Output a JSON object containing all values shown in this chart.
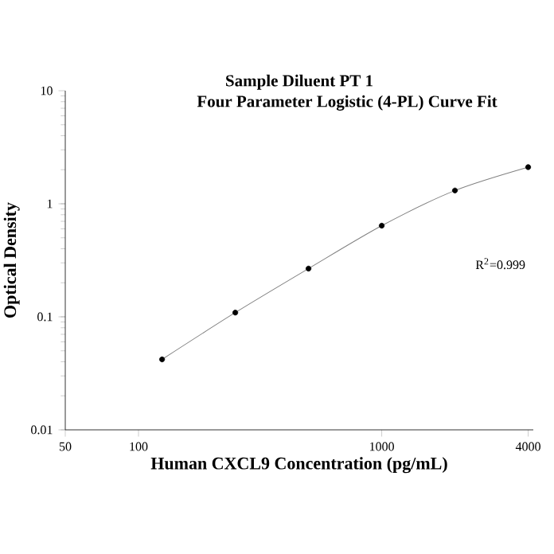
{
  "chart_data": {
    "type": "scatter",
    "title": "Sample Diluent PT 1",
    "subtitle": "Four Parameter Logistic (4-PL) Curve Fit",
    "xlabel": "Human CXCL9 Concentration (pg/mL)",
    "ylabel": "Optical Density",
    "log": "xy",
    "xlim": [
      50,
      4200
    ],
    "ylim": [
      0.01,
      10
    ],
    "xticks": [
      50,
      100,
      1000,
      4000
    ],
    "yticks": [
      0.01,
      0.1,
      1,
      10
    ],
    "grid": false,
    "annotations": [
      "R$^{2}$=0.999"
    ],
    "series": [
      {
        "marker": "circle",
        "color": "#000000",
        "x": [
          125,
          250,
          500,
          1000,
          2000,
          4000
        ],
        "values": [
          0.042,
          0.109,
          0.267,
          0.64,
          1.31,
          2.11
        ]
      },
      {
        "type": "line",
        "marker": "none",
        "color": "#808080",
        "x": [
          125,
          250,
          500,
          1000,
          2000,
          4000
        ],
        "values": [
          0.042,
          0.109,
          0.267,
          0.64,
          1.31,
          2.11
        ]
      }
    ]
  }
}
